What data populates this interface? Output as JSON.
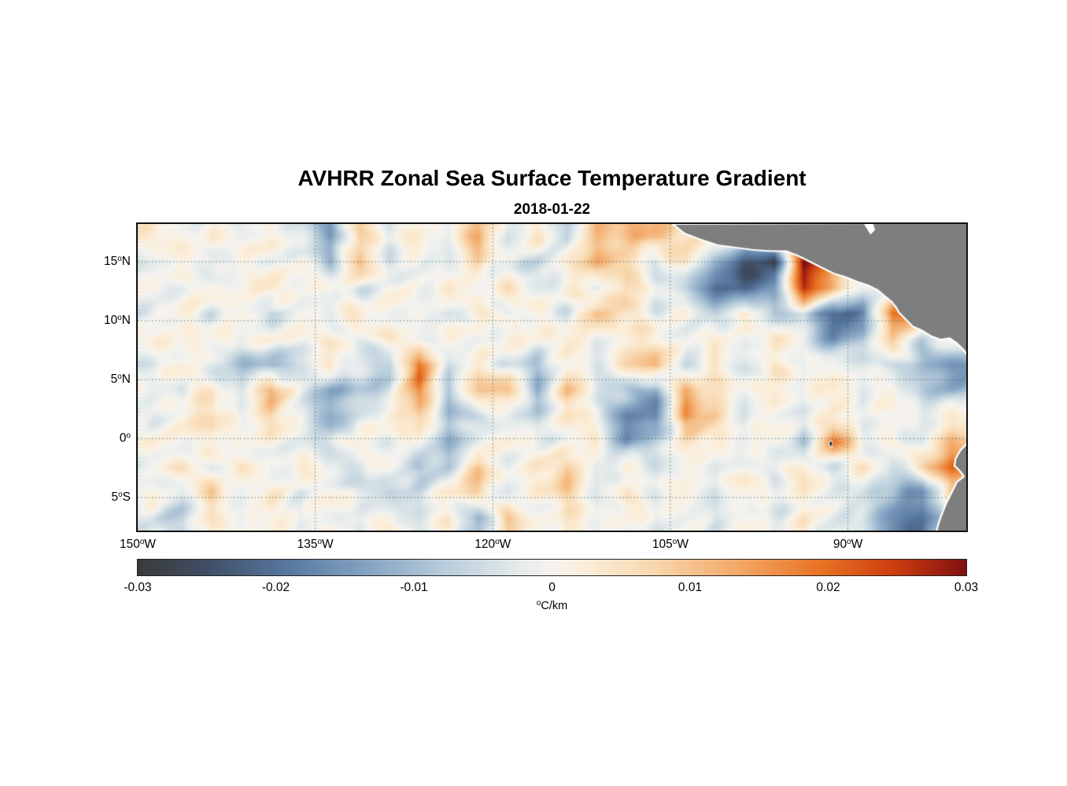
{
  "figure": {
    "title": "AVHRR Zonal Sea Surface Temperature Gradient",
    "subtitle": "2018-01-22"
  },
  "chart_data": {
    "type": "heatmap",
    "title": "AVHRR Zonal Sea Surface Temperature Gradient",
    "date": "2018-01-22",
    "description": "Map of zonal SST gradient over the eastern tropical Pacific; pale mottled field near zero with orange (positive) and blue (negative) filaments, strong eddy dipoles off the Gulf of Tehuantepec and Papagayo, red patch near the Galapagos, and gray land (Central America, northern South America) with white coastline.",
    "deg_symbol": "o",
    "grid": "dotted",
    "x_axis": {
      "range_deg_west": [
        150,
        80
      ],
      "ticks": [
        {
          "deg": "150",
          "hem": "W"
        },
        {
          "deg": "135",
          "hem": "W"
        },
        {
          "deg": "120",
          "hem": "W"
        },
        {
          "deg": "105",
          "hem": "W"
        },
        {
          "deg": "90",
          "hem": "W"
        }
      ],
      "tick_values_deg_west": [
        150,
        135,
        120,
        105,
        90
      ]
    },
    "y_axis": {
      "range_deg_north": [
        18.2,
        -7.8
      ],
      "ticks": [
        {
          "deg": "15",
          "hem": "N"
        },
        {
          "deg": "10",
          "hem": "N"
        },
        {
          "deg": "5",
          "hem": "N"
        },
        {
          "deg": "0",
          "hem": ""
        },
        {
          "deg": "5",
          "hem": "S"
        }
      ],
      "tick_values_deg_north": [
        15,
        10,
        5,
        0,
        -5
      ]
    },
    "colorbar": {
      "range": [
        -0.03,
        0.03
      ],
      "tick_labels": [
        "-0.03",
        "-0.02",
        "-0.01",
        "0",
        "0.01",
        "0.02",
        "0.03"
      ],
      "tick_values": [
        -0.03,
        -0.02,
        -0.01,
        0,
        0.01,
        0.02,
        0.03
      ],
      "label_sup": "o",
      "label_text": "C/km",
      "colormap": [
        [
          0.0,
          "#3a3a3a"
        ],
        [
          0.08,
          "#3f4d63"
        ],
        [
          0.18,
          "#57779f"
        ],
        [
          0.28,
          "#86a5c3"
        ],
        [
          0.38,
          "#bdd0dd"
        ],
        [
          0.46,
          "#e4ebeb"
        ],
        [
          0.5,
          "#f5f3ee"
        ],
        [
          0.54,
          "#fbeeda"
        ],
        [
          0.62,
          "#f8d8b0"
        ],
        [
          0.72,
          "#f3ab6b"
        ],
        [
          0.82,
          "#e87525"
        ],
        [
          0.91,
          "#cf3f10"
        ],
        [
          1.0,
          "#801110"
        ]
      ]
    },
    "field": {
      "units": "0.001 degC/km",
      "lon_west_range": [
        150,
        80
      ],
      "lat_north_range": [
        18.2,
        -7.8
      ],
      "ncols": 28,
      "nrows": 12,
      "values": [
        [
          3,
          -2,
          2,
          -3,
          3,
          -4,
          -15,
          8,
          -3,
          3,
          -2,
          12,
          -4,
          3,
          -8,
          10,
          10,
          12,
          5,
          3,
          -3,
          0,
          10,
          3,
          0,
          0,
          0,
          0
        ],
        [
          -2,
          2,
          -5,
          3,
          -2,
          3,
          -10,
          12,
          -4,
          2,
          -3,
          6,
          -3,
          -6,
          4,
          14,
          5,
          -5,
          5,
          -12,
          -25,
          -28,
          30,
          15,
          0,
          0,
          0,
          0
        ],
        [
          2,
          -3,
          3,
          -2,
          4,
          -3,
          3,
          -4,
          2,
          -3,
          3,
          -2,
          3,
          -3,
          2,
          -4,
          8,
          -3,
          -8,
          -20,
          -25,
          -15,
          25,
          10,
          -5,
          0,
          0,
          0
        ],
        [
          -2,
          3,
          -3,
          2,
          -6,
          2,
          -3,
          3,
          -2,
          2,
          -5,
          3,
          -3,
          2,
          -3,
          10,
          4,
          -3,
          3,
          -6,
          5,
          -8,
          -5,
          -22,
          -18,
          20,
          15,
          0
        ],
        [
          3,
          -2,
          2,
          -3,
          3,
          -2,
          2,
          -3,
          3,
          -2,
          2,
          -4,
          3,
          -2,
          3,
          -3,
          3,
          5,
          -3,
          3,
          -4,
          5,
          -3,
          -15,
          -10,
          12,
          -8,
          0
        ],
        [
          -3,
          2,
          -4,
          -10,
          -12,
          -6,
          4,
          -5,
          -8,
          22,
          -5,
          4,
          -3,
          -10,
          3,
          -3,
          6,
          12,
          -5,
          3,
          -3,
          3,
          -2,
          3,
          -3,
          -5,
          -12,
          -15
        ],
        [
          2,
          -3,
          3,
          -5,
          12,
          -4,
          -12,
          -8,
          -5,
          18,
          -10,
          10,
          10,
          -12,
          10,
          -4,
          -8,
          -15,
          12,
          5,
          -3,
          3,
          -3,
          3,
          -4,
          3,
          -8,
          -10
        ],
        [
          -2,
          3,
          8,
          -3,
          8,
          -3,
          -12,
          -6,
          3,
          10,
          -10,
          -5,
          -4,
          -8,
          6,
          -3,
          -18,
          -20,
          18,
          10,
          -3,
          2,
          -3,
          3,
          -2,
          3,
          -3,
          5
        ],
        [
          3,
          -2,
          2,
          -3,
          3,
          -4,
          -6,
          3,
          -4,
          3,
          -12,
          -4,
          3,
          -3,
          -3,
          3,
          -15,
          -6,
          4,
          3,
          -2,
          3,
          -10,
          20,
          -3,
          3,
          -3,
          10
        ],
        [
          -3,
          3,
          -3,
          3,
          -4,
          3,
          -4,
          -6,
          3,
          -8,
          -6,
          10,
          -3,
          3,
          8,
          -3,
          3,
          -4,
          3,
          -3,
          3,
          -3,
          3,
          -4,
          3,
          -5,
          5,
          20
        ],
        [
          3,
          -4,
          8,
          -3,
          3,
          -4,
          3,
          -4,
          -6,
          -4,
          4,
          8,
          -4,
          3,
          8,
          -3,
          3,
          -3,
          3,
          -4,
          3,
          -3,
          3,
          -3,
          -6,
          -10,
          -18,
          10
        ],
        [
          -2,
          -8,
          5,
          -3,
          2,
          -3,
          2,
          -3,
          2,
          -4,
          2,
          -12,
          8,
          -3,
          4,
          -3,
          2,
          -3,
          2,
          -3,
          2,
          -3,
          2,
          -3,
          -5,
          -15,
          -20,
          0
        ]
      ]
    },
    "geography": {
      "land_color": "#7e7e7e",
      "coast_color": "#ffffff",
      "central_america": [
        [
          104.8,
          18.2
        ],
        [
          103.8,
          17.4
        ],
        [
          102.5,
          16.9
        ],
        [
          101.0,
          16.4
        ],
        [
          99.5,
          16.2
        ],
        [
          98.0,
          16.0
        ],
        [
          96.5,
          15.9
        ],
        [
          95.2,
          15.9
        ],
        [
          94.2,
          15.5
        ],
        [
          93.2,
          15.0
        ],
        [
          92.2,
          14.5
        ],
        [
          91.2,
          14.0
        ],
        [
          90.2,
          13.7
        ],
        [
          89.2,
          13.3
        ],
        [
          88.3,
          13.0
        ],
        [
          87.5,
          12.6
        ],
        [
          86.9,
          12.1
        ],
        [
          86.3,
          11.6
        ],
        [
          85.9,
          11.1
        ],
        [
          85.7,
          10.7
        ],
        [
          85.3,
          10.3
        ],
        [
          84.9,
          9.9
        ],
        [
          84.5,
          9.5
        ],
        [
          83.8,
          9.2
        ],
        [
          83.0,
          8.7
        ],
        [
          82.2,
          8.4
        ],
        [
          81.4,
          8.5
        ],
        [
          80.8,
          8.1
        ],
        [
          80.3,
          7.6
        ],
        [
          79.9,
          7.1
        ],
        [
          79.9,
          18.3
        ]
      ],
      "caribbean_notch": [
        [
          88.7,
          18.3
        ],
        [
          88.1,
          17.3
        ],
        [
          87.7,
          17.7
        ],
        [
          87.9,
          18.3
        ]
      ],
      "south_america": [
        [
          79.9,
          -0.4
        ],
        [
          80.5,
          -1.0
        ],
        [
          80.9,
          -1.7
        ],
        [
          81.0,
          -2.3
        ],
        [
          80.5,
          -2.8
        ],
        [
          80.2,
          -3.2
        ],
        [
          80.8,
          -3.7
        ],
        [
          81.2,
          -4.5
        ],
        [
          81.7,
          -5.5
        ],
        [
          82.1,
          -6.5
        ],
        [
          82.4,
          -7.4
        ],
        [
          82.5,
          -7.9
        ],
        [
          79.9,
          -7.9
        ]
      ],
      "galapagos": [
        [
          91.55,
          -0.25
        ],
        [
          91.35,
          -0.2
        ],
        [
          91.25,
          -0.45
        ],
        [
          91.4,
          -0.6
        ],
        [
          91.3,
          -0.78
        ],
        [
          91.5,
          -0.7
        ],
        [
          91.6,
          -0.45
        ]
      ]
    }
  }
}
